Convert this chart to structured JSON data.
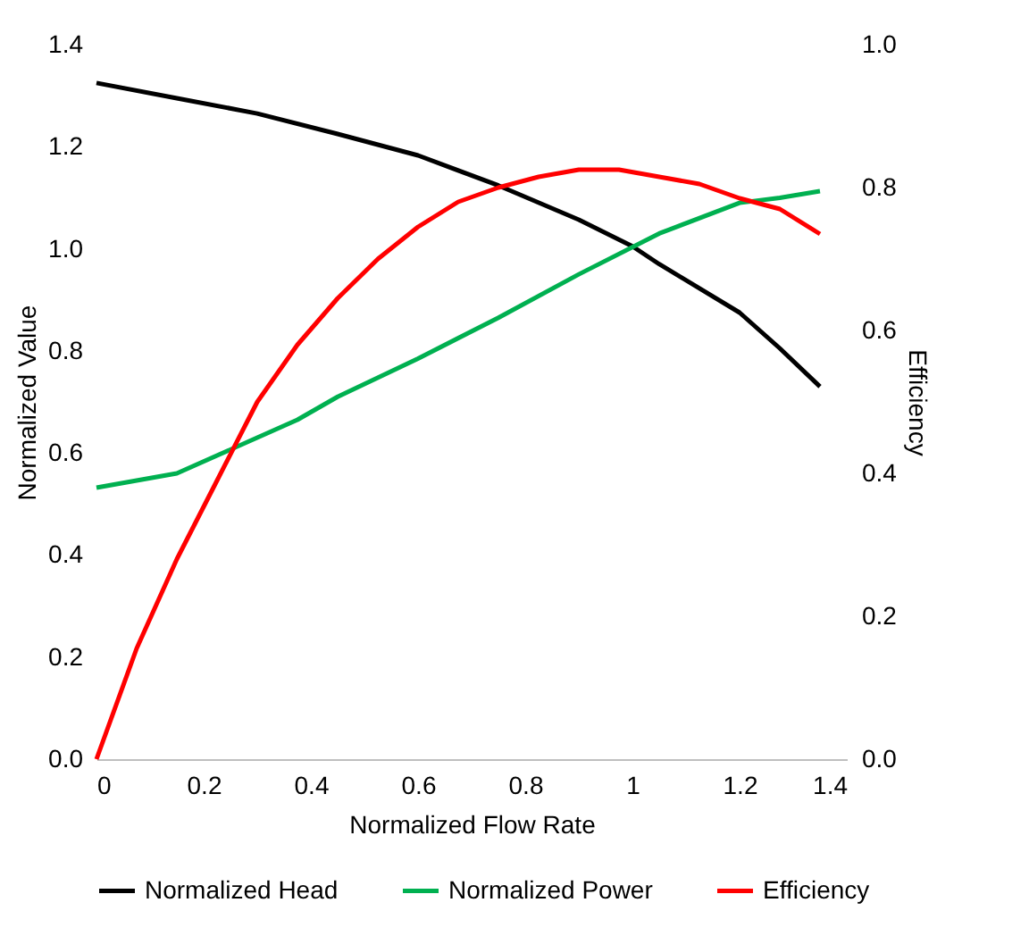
{
  "chart_data": {
    "type": "line",
    "xlabel": "Normalized Flow Rate",
    "ylabel": "Normalized Value",
    "y2label": "Efficiency",
    "xlim": [
      0,
      1.4
    ],
    "xticks": [
      0,
      0.2,
      0.4,
      0.6,
      0.8,
      1,
      1.2,
      1.4
    ],
    "ylim": [
      0,
      1.4
    ],
    "yticks": [
      {
        "value": 0,
        "label": "0.0"
      },
      {
        "value": 0.2,
        "label": "0.2"
      },
      {
        "value": 0.4,
        "label": "0.4"
      },
      {
        "value": 0.6,
        "label": "0.6"
      },
      {
        "value": 0.8,
        "label": "0.8"
      },
      {
        "value": 1,
        "label": "1.0"
      },
      {
        "value": 1.2,
        "label": "1.2"
      },
      {
        "value": 1.4,
        "label": "1.4"
      }
    ],
    "y2lim": [
      0,
      1
    ],
    "y2ticks": [
      {
        "value": 0,
        "label": "0.0"
      },
      {
        "value": 0.2,
        "label": "0.2"
      },
      {
        "value": 0.4,
        "label": "0.4"
      },
      {
        "value": 0.6,
        "label": "0.6"
      },
      {
        "value": 0.8,
        "label": "0.8"
      },
      {
        "value": 1,
        "label": "1.0"
      }
    ],
    "grid": false,
    "legend": "bottom",
    "marker": "none",
    "line_style": "solid",
    "series": [
      {
        "name": "Normalized Head",
        "color": "#000000",
        "x": [
          0,
          0.15,
          0.3,
          0.45,
          0.6,
          0.75,
          0.9,
          1,
          1.05,
          1.2,
          1.275,
          1.35
        ],
        "values": [
          1.325,
          1.295,
          1.265,
          1.225,
          1.183,
          1.124,
          1.057,
          1.005,
          0.97,
          0.875,
          0.805,
          0.73
        ]
      },
      {
        "name": "Normalized Power",
        "color": "#00b050",
        "x": [
          0,
          0.15,
          0.3,
          0.375,
          0.45,
          0.6,
          0.75,
          0.9,
          1.05,
          1.2,
          1.275,
          1.35
        ],
        "values": [
          0.532,
          0.56,
          0.63,
          0.665,
          0.71,
          0.785,
          0.865,
          0.95,
          1.03,
          1.09,
          1.1,
          1.113
        ]
      },
      {
        "name": "Efficiency",
        "color": "#ff0000",
        "axis": "y2",
        "x": [
          0,
          0.075,
          0.15,
          0.225,
          0.3,
          0.375,
          0.45,
          0.525,
          0.6,
          0.675,
          0.75,
          0.825,
          0.9,
          0.975,
          1.05,
          1.125,
          1.2,
          1.275,
          1.35
        ],
        "values": [
          0,
          0.155,
          0.28,
          0.39,
          0.5,
          0.58,
          0.645,
          0.7,
          0.745,
          0.78,
          0.8,
          0.815,
          0.825,
          0.825,
          0.815,
          0.805,
          0.785,
          0.77,
          0.735
        ]
      }
    ]
  }
}
